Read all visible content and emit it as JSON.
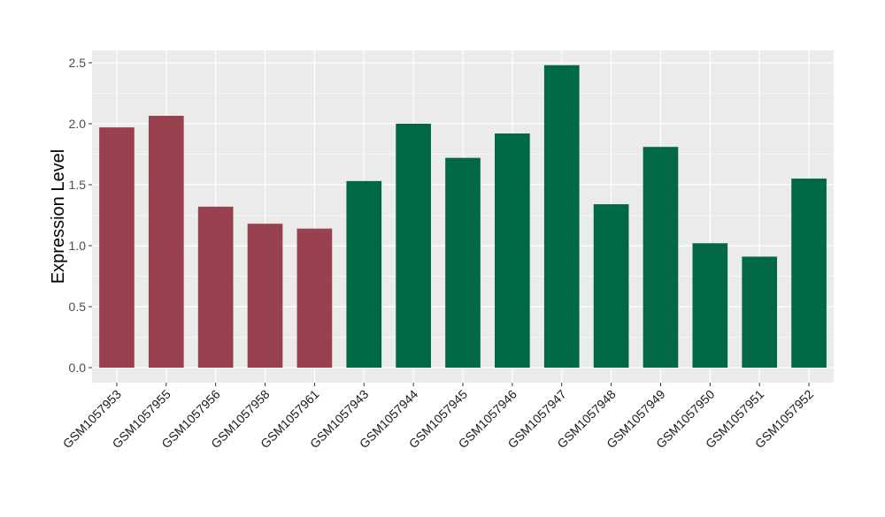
{
  "chart_data": {
    "type": "bar",
    "title": "",
    "xlabel": "",
    "ylabel": "Expression Level",
    "ylim": [
      -0.12,
      2.6
    ],
    "yticks": [
      "0.0",
      "0.5",
      "1.0",
      "1.5",
      "2.0",
      "2.5"
    ],
    "ytick_values": [
      0,
      0.5,
      1.0,
      1.5,
      2.0,
      2.5
    ],
    "grid": true,
    "categories": [
      "GSM1057953",
      "GSM1057955",
      "GSM1057956",
      "GSM1057958",
      "GSM1057961",
      "GSM1057943",
      "GSM1057944",
      "GSM1057945",
      "GSM1057946",
      "GSM1057947",
      "GSM1057948",
      "GSM1057949",
      "GSM1057950",
      "GSM1057951",
      "GSM1057952"
    ],
    "values": [
      1.97,
      2.065,
      1.32,
      1.18,
      1.14,
      1.53,
      2.0,
      1.72,
      1.92,
      2.48,
      1.34,
      1.81,
      1.02,
      0.91,
      1.55
    ],
    "groups": [
      "red",
      "red",
      "red",
      "red",
      "red",
      "green",
      "green",
      "green",
      "green",
      "green",
      "green",
      "green",
      "green",
      "green",
      "green"
    ],
    "colors": {
      "red": "#9A4150",
      "green": "#006846"
    },
    "panel_background": "#EBEBEB",
    "gridline_color": "#FFFFFF"
  }
}
